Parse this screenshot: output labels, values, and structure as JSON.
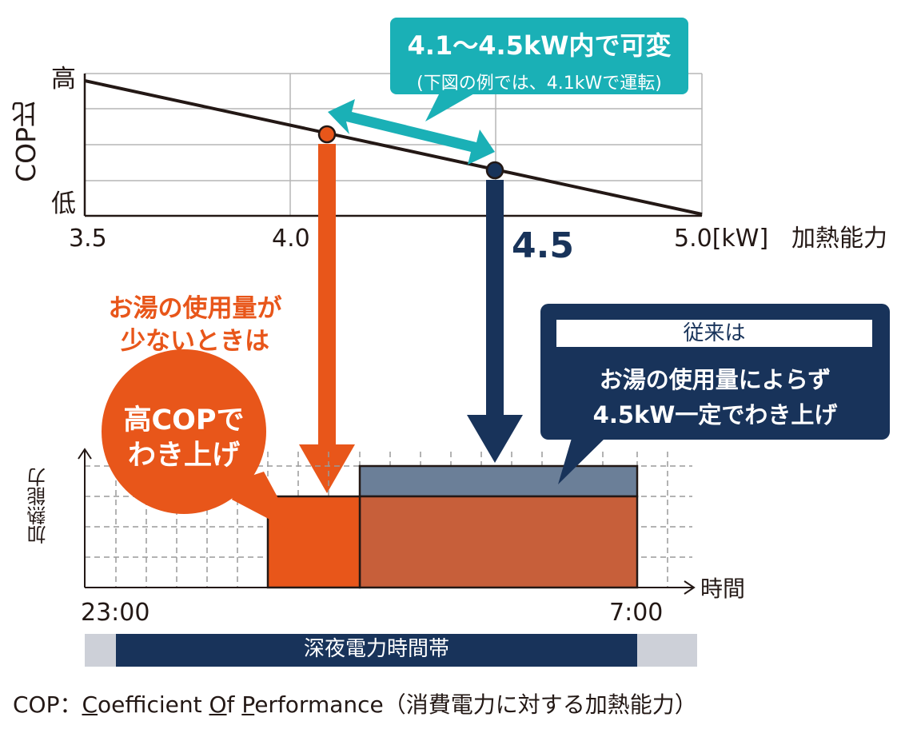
{
  "top_chart": {
    "y_axis_title": "COP比",
    "y_high": "高",
    "y_low": "低",
    "x_ticks": [
      "3.5",
      "4.0",
      "5.0[kW]"
    ],
    "x_axis_title": "加熱能力",
    "highlight_value": "4.5"
  },
  "range_callout": {
    "title": "4.1〜4.5kW内で可変",
    "subtitle": "(下図の例では、4.1kWで運転)"
  },
  "low_usage_note": {
    "line1": "お湯の使用量が",
    "line2": "少ないときは"
  },
  "high_cop_bubble": {
    "line1": "高COPで",
    "line2": "わき上げ"
  },
  "conventional_callout": {
    "header": "従来は",
    "line1": "お湯の使用量によらず",
    "line2": "4.5kW一定でわき上げ"
  },
  "bottom_chart": {
    "y_axis_title": "加熱能力",
    "x_axis_title": "時間",
    "x_start": "23:00",
    "x_end": "7:00",
    "band_label": "深夜電力時間帯"
  },
  "footnote": {
    "prefix": "COP：",
    "c": "C",
    "c_rest": "oefficient ",
    "o": "O",
    "o_rest": "f ",
    "p": "P",
    "p_rest": "erformance",
    "suffix": "（消費電力に対する加熱能力）"
  },
  "colors": {
    "orange": "#e8561a",
    "navy": "#18335a",
    "teal": "#1ab0b6",
    "grey_blue": "#6b7f98",
    "brick": "#c75f3a",
    "band_grey": "#cdd0d8"
  }
}
